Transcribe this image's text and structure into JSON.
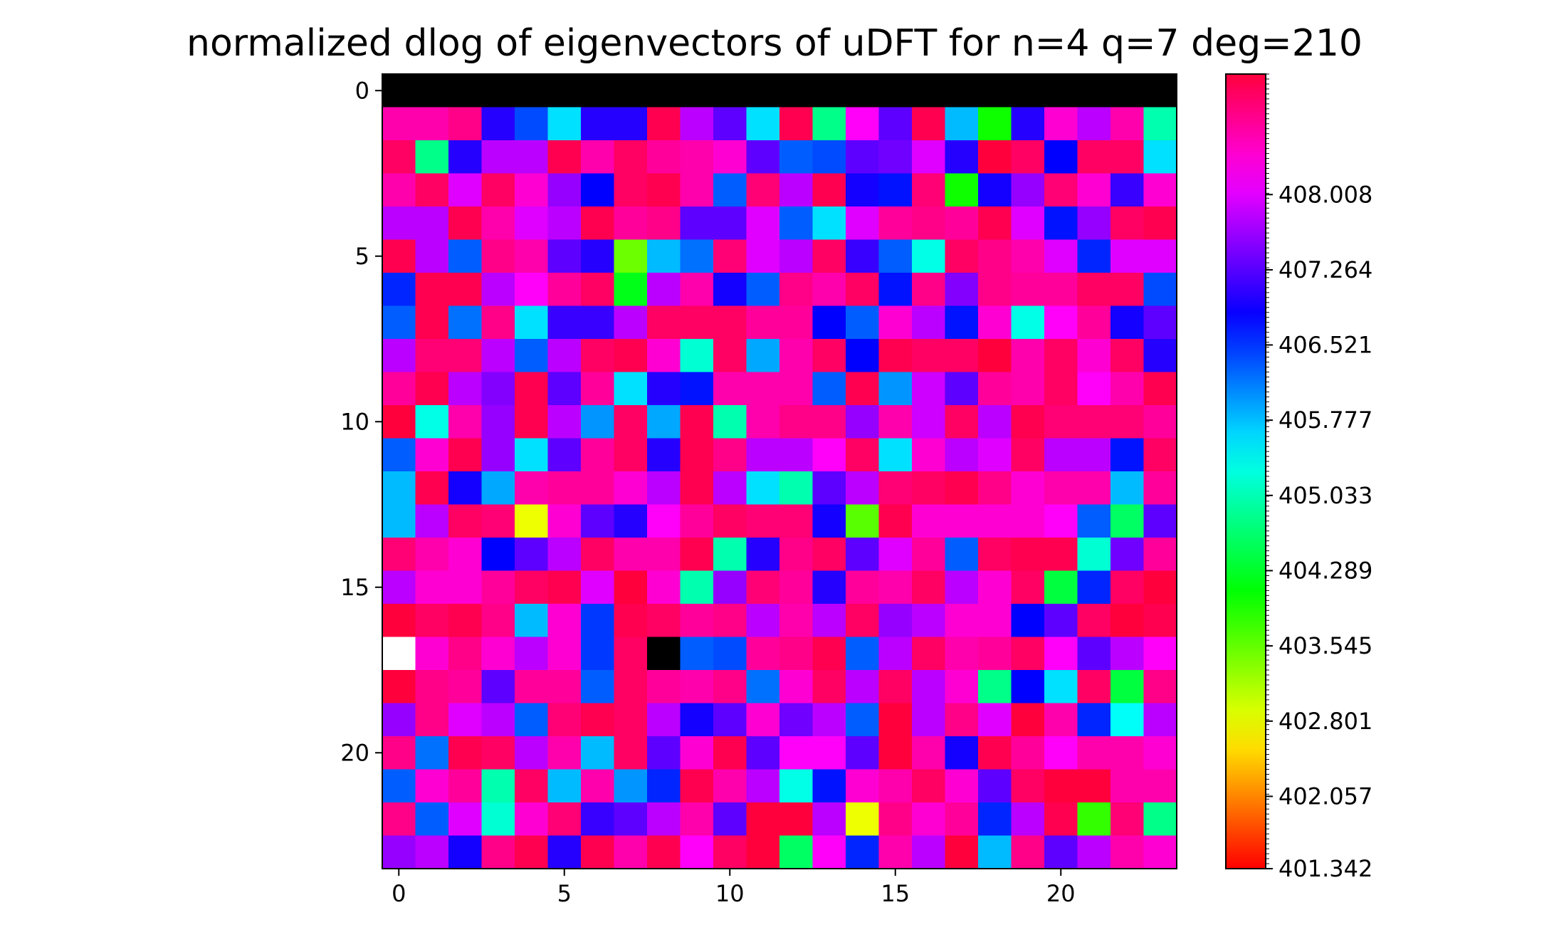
{
  "chart_data": {
    "type": "heatmap",
    "title": "normalized dlog of eigenvectors of uDFT for n=4 q=7 deg=210",
    "xlabel": "",
    "ylabel": "",
    "rows": 24,
    "cols": 24,
    "x_ticks": [
      0,
      5,
      10,
      15,
      20
    ],
    "y_ticks": [
      0,
      5,
      10,
      15,
      20
    ],
    "colorbar": {
      "colormap": "hsv",
      "vmin": 401.342,
      "vmax": 409.2,
      "tick_labels": [
        "408.008",
        "407.264",
        "406.521",
        "405.777",
        "405.033",
        "404.289",
        "403.545",
        "402.801",
        "402.057",
        "401.342"
      ]
    },
    "masked_cells": [
      {
        "row": 17,
        "col": 0,
        "color": "#ffffff"
      },
      {
        "row": 17,
        "col": 8,
        "color": "#000000"
      }
    ],
    "values": [
      [
        401.342,
        401.342,
        401.342,
        401.342,
        401.342,
        401.342,
        401.342,
        401.342,
        401.342,
        401.342,
        401.342,
        401.342,
        401.342,
        401.342,
        401.342,
        401.342,
        401.342,
        401.342,
        401.342,
        401.342,
        401.342,
        401.342,
        401.342,
        401.342
      ],
      [
        408.6,
        408.6,
        408.8,
        407.0,
        406.4,
        405.6,
        407.0,
        407.0,
        409.1,
        407.8,
        407.3,
        405.6,
        409.1,
        404.8,
        408.2,
        407.3,
        409.1,
        405.8,
        404.0,
        407.0,
        408.4,
        407.8,
        408.6,
        405.0
      ],
      [
        409.0,
        404.8,
        407.0,
        407.8,
        407.8,
        409.1,
        408.6,
        409.0,
        408.7,
        408.6,
        408.4,
        407.3,
        406.3,
        406.4,
        407.3,
        407.4,
        408.0,
        407.0,
        409.2,
        409.0,
        406.8,
        409.0,
        409.0,
        405.6
      ],
      [
        408.6,
        409.0,
        408.0,
        409.0,
        408.4,
        407.6,
        406.8,
        409.0,
        409.1,
        408.6,
        406.3,
        408.9,
        407.8,
        409.1,
        406.9,
        406.7,
        408.9,
        404.0,
        406.9,
        407.6,
        408.9,
        408.4,
        407.1,
        408.4
      ],
      [
        407.8,
        407.8,
        409.1,
        408.6,
        408.0,
        407.8,
        409.1,
        408.7,
        408.8,
        407.3,
        407.3,
        408.0,
        406.3,
        405.6,
        408.0,
        408.7,
        408.8,
        408.7,
        409.1,
        408.0,
        406.7,
        407.6,
        409.0,
        409.1
      ],
      [
        409.1,
        407.8,
        406.3,
        408.8,
        408.6,
        407.3,
        407.0,
        403.5,
        405.8,
        406.2,
        408.9,
        408.0,
        407.8,
        409.0,
        407.1,
        406.3,
        405.3,
        409.0,
        408.8,
        408.6,
        408.0,
        406.6,
        408.0,
        408.0
      ],
      [
        406.6,
        409.1,
        409.1,
        407.8,
        408.2,
        408.7,
        409.0,
        404.2,
        407.8,
        408.6,
        406.9,
        406.3,
        408.8,
        408.6,
        409.0,
        406.7,
        408.8,
        407.5,
        408.8,
        408.7,
        408.7,
        409.0,
        409.0,
        406.4
      ],
      [
        406.3,
        409.1,
        406.2,
        408.8,
        405.6,
        407.1,
        407.1,
        407.8,
        409.0,
        409.0,
        409.0,
        408.7,
        408.7,
        406.8,
        406.3,
        408.4,
        407.8,
        406.7,
        408.4,
        405.3,
        408.2,
        408.7,
        406.9,
        407.3
      ],
      [
        407.8,
        408.9,
        408.9,
        407.8,
        406.3,
        407.8,
        409.0,
        409.1,
        408.4,
        405.2,
        409.0,
        405.9,
        408.6,
        409.0,
        406.8,
        409.1,
        409.0,
        409.0,
        409.2,
        408.6,
        409.0,
        408.4,
        409.0,
        407.0
      ],
      [
        408.7,
        409.1,
        407.8,
        407.5,
        409.1,
        407.3,
        408.7,
        405.6,
        407.0,
        406.7,
        408.6,
        408.6,
        408.6,
        406.3,
        409.1,
        406.0,
        407.9,
        407.3,
        408.7,
        408.6,
        409.0,
        408.2,
        408.6,
        409.1
      ],
      [
        409.2,
        405.3,
        408.6,
        407.6,
        409.1,
        407.8,
        406.0,
        409.0,
        405.9,
        409.1,
        405.0,
        408.6,
        408.8,
        408.8,
        407.6,
        408.6,
        407.9,
        409.0,
        407.8,
        409.1,
        408.9,
        408.9,
        408.9,
        408.7
      ],
      [
        406.3,
        408.4,
        409.1,
        407.6,
        405.6,
        407.3,
        408.7,
        409.0,
        407.0,
        409.1,
        408.8,
        407.8,
        407.8,
        408.2,
        409.0,
        405.6,
        408.4,
        407.8,
        408.0,
        409.0,
        407.8,
        407.8,
        406.7,
        409.0
      ],
      [
        405.8,
        409.1,
        406.9,
        405.9,
        408.6,
        408.7,
        408.7,
        408.4,
        407.8,
        409.1,
        407.8,
        405.6,
        405.0,
        407.3,
        407.8,
        408.9,
        409.0,
        409.1,
        408.8,
        408.4,
        408.6,
        408.6,
        405.8,
        408.7
      ],
      [
        405.8,
        407.8,
        409.0,
        408.9,
        402.8,
        408.4,
        407.3,
        407.0,
        408.2,
        408.7,
        409.0,
        408.9,
        408.9,
        406.9,
        403.6,
        409.1,
        408.4,
        408.4,
        408.4,
        408.4,
        408.2,
        406.3,
        404.6,
        407.3
      ],
      [
        408.9,
        408.6,
        408.4,
        406.8,
        407.3,
        407.8,
        409.0,
        408.6,
        408.6,
        409.1,
        405.0,
        407.0,
        408.8,
        409.0,
        407.3,
        408.0,
        408.7,
        406.3,
        409.0,
        409.1,
        409.1,
        405.2,
        407.4,
        408.7
      ],
      [
        407.8,
        408.4,
        408.4,
        408.7,
        409.0,
        409.1,
        408.0,
        409.2,
        408.4,
        405.0,
        407.6,
        408.9,
        408.7,
        407.0,
        408.7,
        408.6,
        409.0,
        407.8,
        408.4,
        409.0,
        404.4,
        406.6,
        409.0,
        409.2
      ],
      [
        409.2,
        409.0,
        409.1,
        408.8,
        405.8,
        408.4,
        406.5,
        409.1,
        409.0,
        408.7,
        408.8,
        407.8,
        408.6,
        407.8,
        409.0,
        407.6,
        407.8,
        408.4,
        408.4,
        406.8,
        407.3,
        409.0,
        409.2,
        409.1
      ],
      [
        401.342,
        408.4,
        408.8,
        408.4,
        407.8,
        408.4,
        406.5,
        409.0,
        401.342,
        406.3,
        406.4,
        408.7,
        408.8,
        409.1,
        406.3,
        407.8,
        409.0,
        408.6,
        408.7,
        409.0,
        408.2,
        407.3,
        407.8,
        408.2
      ],
      [
        409.2,
        408.8,
        408.7,
        407.3,
        408.7,
        408.7,
        406.3,
        409.0,
        408.7,
        408.6,
        408.8,
        406.2,
        408.4,
        409.0,
        407.8,
        409.0,
        407.8,
        408.4,
        404.8,
        406.8,
        405.6,
        409.0,
        404.4,
        408.8
      ],
      [
        407.6,
        408.8,
        408.0,
        407.8,
        406.3,
        408.9,
        409.1,
        409.0,
        407.8,
        406.9,
        407.3,
        408.4,
        407.4,
        407.8,
        406.3,
        409.2,
        407.8,
        408.8,
        408.0,
        409.2,
        408.6,
        406.6,
        405.4,
        407.8
      ],
      [
        408.8,
        406.2,
        409.1,
        409.0,
        407.8,
        408.6,
        405.8,
        409.0,
        407.3,
        408.4,
        409.1,
        407.3,
        408.2,
        408.2,
        407.3,
        409.2,
        408.6,
        406.9,
        409.1,
        408.7,
        408.2,
        408.6,
        408.6,
        408.4
      ],
      [
        406.3,
        408.4,
        408.7,
        405.0,
        409.0,
        405.8,
        408.6,
        406.0,
        406.6,
        409.1,
        408.6,
        407.8,
        405.3,
        406.7,
        408.4,
        408.6,
        409.0,
        408.4,
        407.3,
        409.0,
        409.2,
        409.2,
        408.6,
        408.6
      ],
      [
        408.8,
        406.3,
        408.0,
        405.2,
        408.4,
        408.9,
        407.1,
        407.3,
        407.8,
        408.6,
        407.3,
        409.3,
        409.3,
        407.8,
        402.8,
        408.8,
        408.4,
        408.7,
        406.6,
        407.8,
        409.1,
        403.8,
        408.9,
        404.8
      ],
      [
        407.6,
        407.8,
        406.9,
        408.8,
        409.1,
        407.0,
        409.1,
        408.6,
        409.1,
        408.2,
        409.0,
        409.2,
        404.6,
        408.2,
        406.6,
        408.6,
        407.8,
        409.2,
        405.8,
        408.8,
        407.3,
        407.8,
        408.6,
        408.4
      ]
    ]
  }
}
